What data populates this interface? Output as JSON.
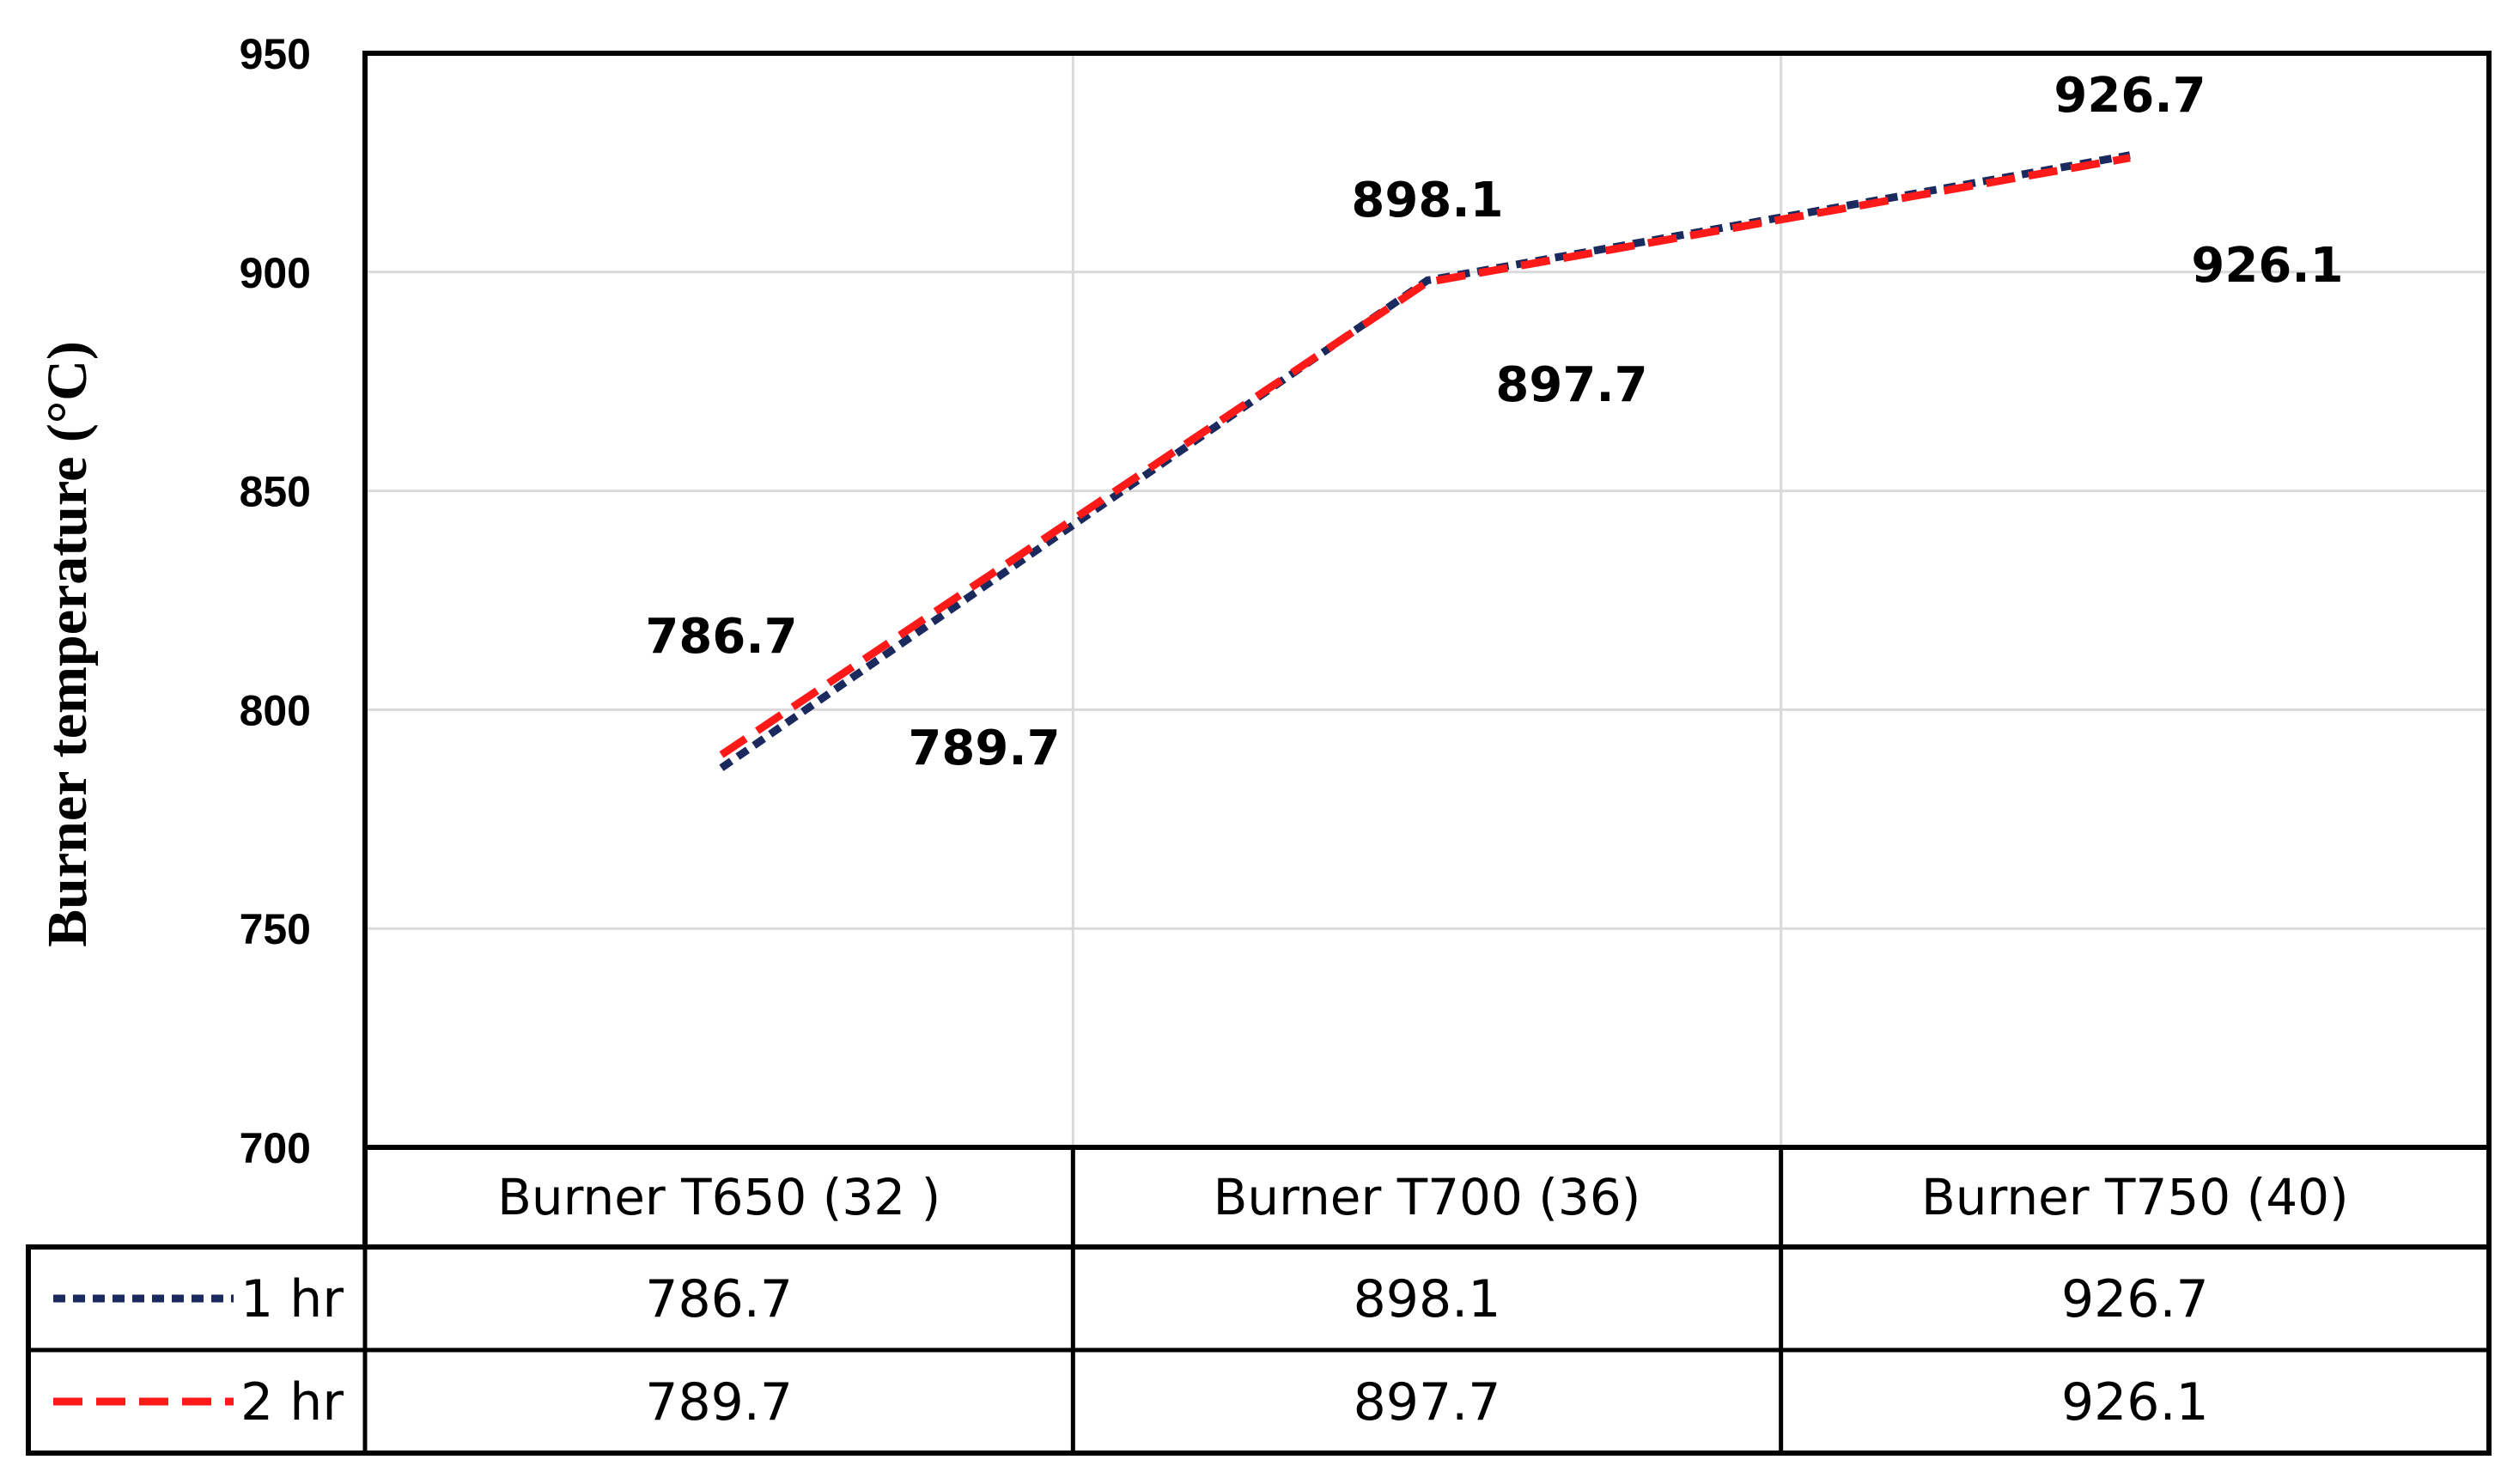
{
  "chart_data": {
    "type": "line",
    "title": "",
    "xlabel": "",
    "ylabel": "Burner temperature (°C)",
    "ylim": [
      700,
      950
    ],
    "yticks": [
      700,
      750,
      800,
      850,
      900,
      950
    ],
    "grid": true,
    "categories": [
      "Burner T650 (32 )",
      "Burner T700 (36)",
      "Burner T750 (40)"
    ],
    "series": [
      {
        "name": "1 hr",
        "values": [
          786.7,
          898.1,
          926.7
        ],
        "color": "#1b2a5e",
        "dash": "dotted"
      },
      {
        "name": "2 hr",
        "values": [
          789.7,
          897.7,
          926.1
        ],
        "color": "#ff1a1a",
        "dash": "dashed"
      }
    ],
    "data_labels": [
      [
        "786.7",
        "898.1",
        "926.7"
      ],
      [
        "789.7",
        "897.7",
        "926.1"
      ]
    ],
    "legend": "data-table-below"
  }
}
